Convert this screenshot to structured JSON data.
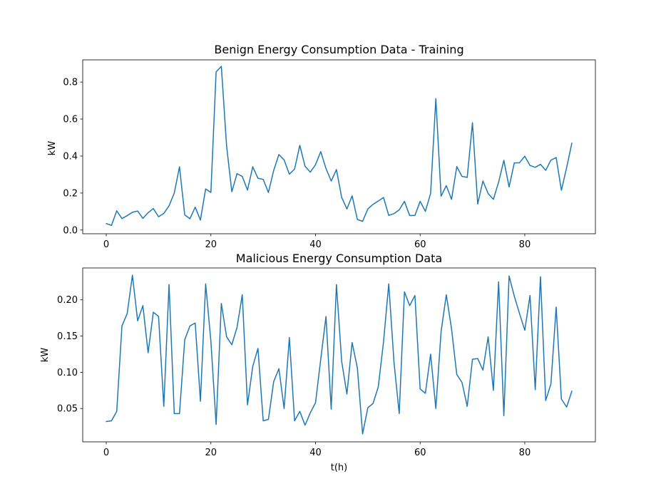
{
  "chart_data": [
    {
      "type": "line",
      "title": "Benign Energy Consumption Data - Training",
      "xlabel": "",
      "ylabel": "kW",
      "xlim": [
        -4.5,
        93.5
      ],
      "ylim": [
        -0.02,
        0.92
      ],
      "xticks": [
        0,
        20,
        40,
        60,
        80
      ],
      "yticks": [
        0.0,
        0.2,
        0.4,
        0.6,
        0.8
      ],
      "ytick_labels": [
        "0.0",
        "0.2",
        "0.4",
        "0.6",
        "0.8"
      ],
      "grid": false,
      "color": "#1f77b4",
      "series": [
        {
          "x": [
            0,
            1,
            2,
            3,
            4,
            5,
            6,
            7,
            8,
            9,
            10,
            11,
            12,
            13,
            14,
            15,
            16,
            17,
            18,
            19,
            20,
            21,
            22,
            23,
            24,
            25,
            26,
            27,
            28,
            29,
            30,
            31,
            32,
            33,
            34,
            35,
            36,
            37,
            38,
            39,
            40,
            41,
            42,
            43,
            44,
            45,
            46,
            47,
            48,
            49,
            50,
            51,
            52,
            53,
            54,
            55,
            56,
            57,
            58,
            59,
            60,
            61,
            62,
            63,
            64,
            65,
            66,
            67,
            68,
            69,
            70,
            71,
            72,
            73,
            74,
            75,
            76,
            77,
            78,
            79,
            80,
            81,
            82,
            83,
            84,
            85,
            86,
            87,
            88,
            89
          ],
          "values": [
            0.035,
            0.025,
            0.104,
            0.062,
            0.078,
            0.096,
            0.103,
            0.063,
            0.094,
            0.116,
            0.072,
            0.09,
            0.131,
            0.2,
            0.342,
            0.082,
            0.061,
            0.124,
            0.054,
            0.222,
            0.203,
            0.855,
            0.885,
            0.455,
            0.207,
            0.305,
            0.29,
            0.216,
            0.342,
            0.28,
            0.274,
            0.203,
            0.322,
            0.408,
            0.379,
            0.302,
            0.33,
            0.458,
            0.345,
            0.313,
            0.353,
            0.424,
            0.333,
            0.265,
            0.327,
            0.176,
            0.114,
            0.185,
            0.057,
            0.047,
            0.114,
            0.139,
            0.157,
            0.176,
            0.079,
            0.089,
            0.109,
            0.155,
            0.078,
            0.079,
            0.155,
            0.101,
            0.198,
            0.71,
            0.183,
            0.24,
            0.166,
            0.343,
            0.29,
            0.285,
            0.58,
            0.141,
            0.265,
            0.197,
            0.166,
            0.259,
            0.377,
            0.233,
            0.363,
            0.364,
            0.399,
            0.349,
            0.339,
            0.355,
            0.323,
            0.378,
            0.392,
            0.215,
            0.337,
            0.47
          ]
        }
      ]
    },
    {
      "type": "line",
      "title": "Malicious Energy Consumption Data",
      "xlabel": "t(h)",
      "ylabel": "kW",
      "xlim": [
        -4.5,
        93.5
      ],
      "ylim": [
        0.004,
        0.244
      ],
      "xticks": [
        0,
        20,
        40,
        60,
        80
      ],
      "yticks": [
        0.05,
        0.1,
        0.15,
        0.2
      ],
      "ytick_labels": [
        "0.05",
        "0.10",
        "0.15",
        "0.20"
      ],
      "grid": false,
      "color": "#1f77b4",
      "series": [
        {
          "x": [
            0,
            1,
            2,
            3,
            4,
            5,
            6,
            7,
            8,
            9,
            10,
            11,
            12,
            13,
            14,
            15,
            16,
            17,
            18,
            19,
            20,
            21,
            22,
            23,
            24,
            25,
            26,
            27,
            28,
            29,
            30,
            31,
            32,
            33,
            34,
            35,
            36,
            37,
            38,
            39,
            40,
            41,
            42,
            43,
            44,
            45,
            46,
            47,
            48,
            49,
            50,
            51,
            52,
            53,
            54,
            55,
            56,
            57,
            58,
            59,
            60,
            61,
            62,
            63,
            64,
            65,
            66,
            67,
            68,
            69,
            70,
            71,
            72,
            73,
            74,
            75,
            76,
            77,
            78,
            79,
            80,
            81,
            82,
            83,
            84,
            85,
            86,
            87,
            88,
            89
          ],
          "values": [
            0.032,
            0.033,
            0.046,
            0.164,
            0.181,
            0.234,
            0.171,
            0.192,
            0.127,
            0.183,
            0.177,
            0.053,
            0.221,
            0.043,
            0.043,
            0.145,
            0.164,
            0.168,
            0.06,
            0.222,
            0.143,
            0.028,
            0.195,
            0.149,
            0.138,
            0.162,
            0.207,
            0.055,
            0.108,
            0.133,
            0.033,
            0.035,
            0.087,
            0.105,
            0.05,
            0.148,
            0.033,
            0.046,
            0.027,
            0.044,
            0.058,
            0.118,
            0.177,
            0.049,
            0.221,
            0.115,
            0.07,
            0.141,
            0.106,
            0.015,
            0.051,
            0.057,
            0.08,
            0.142,
            0.222,
            0.114,
            0.043,
            0.211,
            0.192,
            0.206,
            0.077,
            0.071,
            0.125,
            0.05,
            0.156,
            0.207,
            0.16,
            0.097,
            0.086,
            0.053,
            0.118,
            0.119,
            0.103,
            0.149,
            0.075,
            0.225,
            0.04,
            0.233,
            0.205,
            0.181,
            0.158,
            0.206,
            0.076,
            0.232,
            0.061,
            0.084,
            0.19,
            0.063,
            0.052,
            0.074
          ]
        }
      ]
    }
  ]
}
